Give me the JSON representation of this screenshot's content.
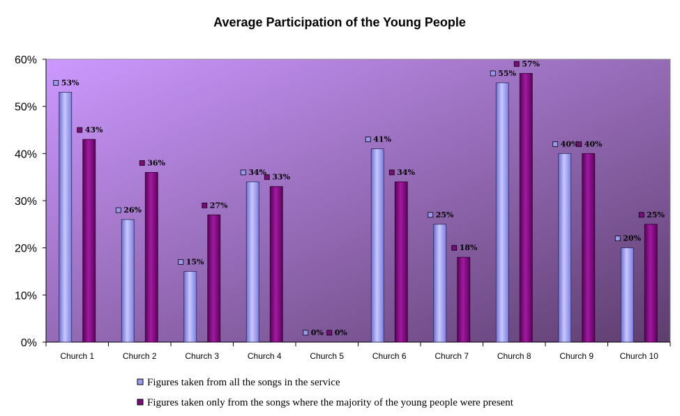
{
  "chart_data": {
    "type": "bar",
    "title": "Average Participation of the Young People",
    "categories": [
      "Church 1",
      "Church 2",
      "Church 3",
      "Church 4",
      "Church 5",
      "Church 6",
      "Church 7",
      "Church 8",
      "Church 9",
      "Church 10"
    ],
    "series": [
      {
        "name": "Figures taken from all the songs in the service",
        "values": [
          53,
          26,
          15,
          34,
          0,
          41,
          25,
          55,
          40,
          20
        ],
        "labels": [
          "53%",
          "26%",
          "15%",
          "34%",
          "0%",
          "41%",
          "25%",
          "55%",
          "40%",
          "20%"
        ],
        "color": "#9a9aef"
      },
      {
        "name": "Figures taken only from the songs where the majority of the young people were present",
        "values": [
          43,
          36,
          27,
          33,
          0,
          34,
          18,
          57,
          40,
          25
        ],
        "labels": [
          "43%",
          "36%",
          "27%",
          "33%",
          "0%",
          "34%",
          "18%",
          "57%",
          "40%",
          "25%"
        ],
        "color": "#7a0c7a"
      }
    ],
    "yticks": [
      "0%",
      "10%",
      "20%",
      "30%",
      "40%",
      "50%",
      "60%"
    ],
    "ylim": [
      0,
      60
    ],
    "grid": false,
    "legend_position": "bottom",
    "plot_background": [
      "#cc99ff",
      "#5e3d6e"
    ]
  }
}
